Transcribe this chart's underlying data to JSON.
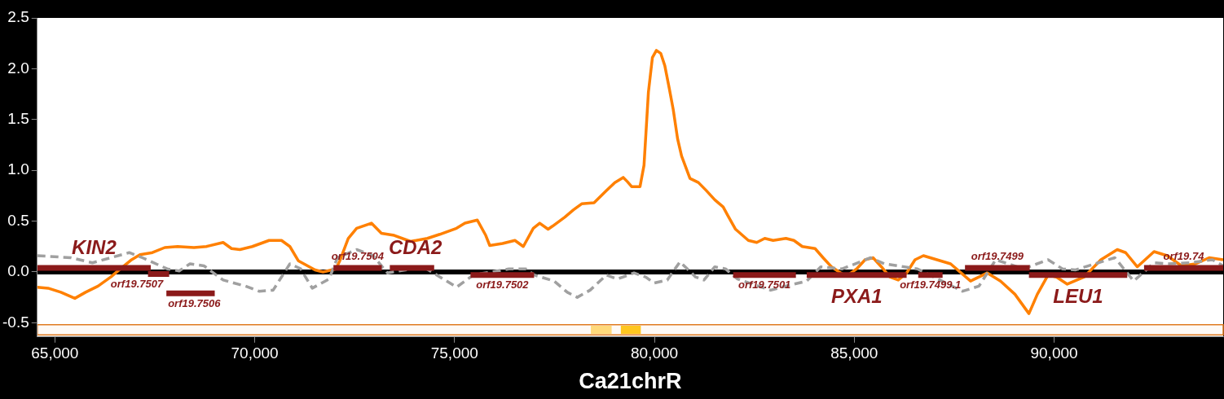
{
  "chart_data": {
    "type": "line",
    "xlabel": "Ca21chrR",
    "xlim": [
      64560,
      94230
    ],
    "xticks": [
      {
        "value": 65000,
        "label": "65,000"
      },
      {
        "value": 70000,
        "label": "70,000"
      },
      {
        "value": 75000,
        "label": "75,000"
      },
      {
        "value": 80000,
        "label": "80,000"
      },
      {
        "value": 85000,
        "label": "85,000"
      },
      {
        "value": 90000,
        "label": "90,000"
      }
    ],
    "ylim": [
      -0.64,
      2.5
    ],
    "yticks": [
      {
        "value": -0.5,
        "label": "-0.5"
      },
      {
        "value": 0,
        "label": "0.0"
      },
      {
        "value": 0.5,
        "label": "0.5"
      },
      {
        "value": 1,
        "label": "1.0"
      },
      {
        "value": 1.5,
        "label": "1.5"
      },
      {
        "value": 2,
        "label": "2.0"
      },
      {
        "value": 2.5,
        "label": "2.5"
      }
    ],
    "grid": false,
    "legend": false,
    "marker": "none",
    "ref_lines": [
      {
        "axis": "y",
        "value": 0,
        "color": "#000000"
      }
    ],
    "bands": [
      {
        "axis": "y",
        "from": -0.62,
        "to": -0.52,
        "color": "#e07b20"
      }
    ],
    "series": [
      {
        "type": "line",
        "name": "KIN2",
        "color": "#8b1a1a",
        "x": [
          64560,
          67400
        ],
        "values": [
          0.04,
          0.04
        ]
      },
      {
        "type": "line",
        "name": "orf19.7507",
        "color": "#8b1a1a",
        "x": [
          67330,
          67860
        ],
        "values": [
          -0.02,
          -0.02
        ]
      },
      {
        "type": "line",
        "name": "orf19.7506",
        "color": "#8b1a1a",
        "x": [
          67790,
          69000
        ],
        "values": [
          -0.21,
          -0.21
        ]
      },
      {
        "type": "line",
        "name": "orf19.7504",
        "color": "#8b1a1a",
        "x": [
          71970,
          73180
        ],
        "values": [
          0.04,
          0.04
        ]
      },
      {
        "type": "line",
        "name": "CDA2",
        "color": "#8b1a1a",
        "x": [
          73380,
          74490
        ],
        "values": [
          0.04,
          0.04
        ]
      },
      {
        "type": "line",
        "name": "orf19.7502",
        "color": "#8b1a1a",
        "x": [
          75400,
          76990
        ],
        "values": [
          -0.03,
          -0.03
        ]
      },
      {
        "type": "line",
        "name": "orf19.7501",
        "color": "#8b1a1a",
        "x": [
          81970,
          83540
        ],
        "values": [
          -0.03,
          -0.03
        ]
      },
      {
        "type": "line",
        "name": "PXA1",
        "color": "#8b1a1a",
        "x": [
          83810,
          86310
        ],
        "values": [
          -0.03,
          -0.03
        ]
      },
      {
        "type": "line",
        "name": "orf19.7499.1",
        "color": "#8b1a1a",
        "x": [
          86600,
          87210
        ],
        "values": [
          -0.03,
          -0.03
        ]
      },
      {
        "type": "line",
        "name": "orf19.7499",
        "color": "#8b1a1a",
        "x": [
          87770,
          89390
        ],
        "values": [
          0.04,
          0.04
        ]
      },
      {
        "type": "line",
        "name": "LEU1",
        "color": "#8b1a1a",
        "x": [
          89370,
          91830
        ],
        "values": [
          -0.03,
          -0.03
        ]
      },
      {
        "type": "line",
        "name": "orf19.74",
        "color": "#8b1a1a",
        "x": [
          92250,
          94230
        ],
        "values": [
          0.04,
          0.04
        ]
      },
      {
        "type": "line",
        "color": "#ffd97a",
        "x": [
          78410,
          78930
        ],
        "values": [
          -0.57,
          -0.57
        ]
      },
      {
        "type": "line",
        "color": "#ffc61e",
        "x": [
          79160,
          79660
        ],
        "values": [
          -0.57,
          -0.57
        ]
      },
      {
        "type": "line",
        "color": "#a0a0a0",
        "line_style": "dashed",
        "x": [
          64560,
          65400,
          65940,
          66860,
          67190,
          67810,
          68110,
          68380,
          68730,
          69210,
          69770,
          70110,
          70460,
          70880,
          71150,
          71440,
          71860,
          72070,
          72550,
          72960,
          73320,
          74220,
          75050,
          75470,
          76360,
          76780,
          76990,
          77490,
          77820,
          78070,
          78390,
          78800,
          79070,
          79490,
          79780,
          79990,
          80320,
          80640,
          81030,
          81240,
          81510,
          81780,
          82080,
          82910,
          83180,
          83810,
          84160,
          84700,
          85410,
          85750,
          86580,
          87140,
          87710,
          88120,
          88540,
          89230,
          89850,
          90210,
          90540,
          91100,
          91520,
          91990,
          92500,
          92830,
          93400,
          93960,
          94230
        ],
        "values": [
          0.16,
          0.14,
          0.09,
          0.19,
          0.14,
          0.03,
          0.01,
          0.08,
          0.06,
          -0.08,
          -0.14,
          -0.19,
          -0.18,
          0.08,
          0.03,
          -0.16,
          -0.07,
          0.14,
          0.22,
          0.16,
          -0.01,
          0.05,
          -0.15,
          -0.03,
          0.03,
          0.03,
          -0.03,
          -0.09,
          -0.2,
          -0.25,
          -0.18,
          -0.03,
          -0.07,
          -0.01,
          -0.05,
          -0.11,
          -0.08,
          0.1,
          -0.05,
          -0.08,
          0.05,
          0.03,
          -0.07,
          -0.18,
          -0.15,
          -0.09,
          0.05,
          0.03,
          0.14,
          0.08,
          0.03,
          -0.08,
          -0.19,
          -0.14,
          0.12,
          0.03,
          0.12,
          0.03,
          0.02,
          0.09,
          0.14,
          -0.09,
          0.09,
          0.08,
          0.09,
          0.12,
          0.06
        ]
      },
      {
        "type": "line",
        "color": "#ff8000",
        "x": [
          64560,
          64830,
          65150,
          65500,
          65770,
          66080,
          66400,
          66610,
          66920,
          67130,
          67440,
          67750,
          68070,
          68480,
          68790,
          69210,
          69420,
          69630,
          69940,
          70360,
          70670,
          70880,
          71090,
          71510,
          71710,
          72030,
          72130,
          72340,
          72550,
          72920,
          73170,
          73490,
          73900,
          74320,
          74630,
          75050,
          75260,
          75570,
          75780,
          75880,
          76200,
          76510,
          76720,
          76970,
          77130,
          77340,
          77450,
          77760,
          77970,
          78180,
          78490,
          78800,
          79010,
          79220,
          79320,
          79430,
          79640,
          79740,
          79850,
          79950,
          80050,
          80160,
          80260,
          80370,
          80470,
          80580,
          80680,
          80890,
          81100,
          81300,
          81510,
          81720,
          81830,
          82030,
          82350,
          82560,
          82760,
          82970,
          83290,
          83490,
          83700,
          84020,
          84220,
          84430,
          84740,
          84850,
          85060,
          85270,
          85470,
          85680,
          85890,
          86100,
          86310,
          86520,
          86730,
          87410,
          87910,
          88330,
          88660,
          89020,
          89370,
          89580,
          89850,
          90060,
          90330,
          90750,
          91170,
          91580,
          91790,
          92080,
          92500,
          92830,
          93190,
          93540,
          93880,
          94230
        ],
        "values": [
          -0.15,
          -0.16,
          -0.2,
          -0.26,
          -0.2,
          -0.14,
          -0.05,
          0.02,
          0.12,
          0.17,
          0.19,
          0.24,
          0.25,
          0.24,
          0.25,
          0.29,
          0.23,
          0.22,
          0.25,
          0.31,
          0.31,
          0.25,
          0.11,
          0.02,
          0,
          0.03,
          0.11,
          0.33,
          0.43,
          0.48,
          0.38,
          0.36,
          0.3,
          0.33,
          0.37,
          0.43,
          0.48,
          0.51,
          0.36,
          0.26,
          0.28,
          0.31,
          0.25,
          0.43,
          0.48,
          0.42,
          0.45,
          0.54,
          0.61,
          0.67,
          0.68,
          0.8,
          0.88,
          0.93,
          0.89,
          0.84,
          0.84,
          1.05,
          1.77,
          2.11,
          2.18,
          2.15,
          2.03,
          1.81,
          1.6,
          1.31,
          1.14,
          0.92,
          0.88,
          0.8,
          0.71,
          0.64,
          0.56,
          0.42,
          0.31,
          0.29,
          0.33,
          0.31,
          0.33,
          0.31,
          0.25,
          0.23,
          0.14,
          0.05,
          -0.03,
          -0.03,
          0.03,
          0.12,
          0.14,
          0.05,
          -0.05,
          -0.08,
          -0.01,
          0.12,
          0.16,
          0.08,
          -0.09,
          -0.01,
          -0.09,
          -0.22,
          -0.41,
          -0.22,
          -0.03,
          -0.05,
          -0.12,
          -0.05,
          0.12,
          0.22,
          0.19,
          0.05,
          0.2,
          0.16,
          0.06,
          0.08,
          0.14,
          0.12
        ]
      }
    ]
  }
}
